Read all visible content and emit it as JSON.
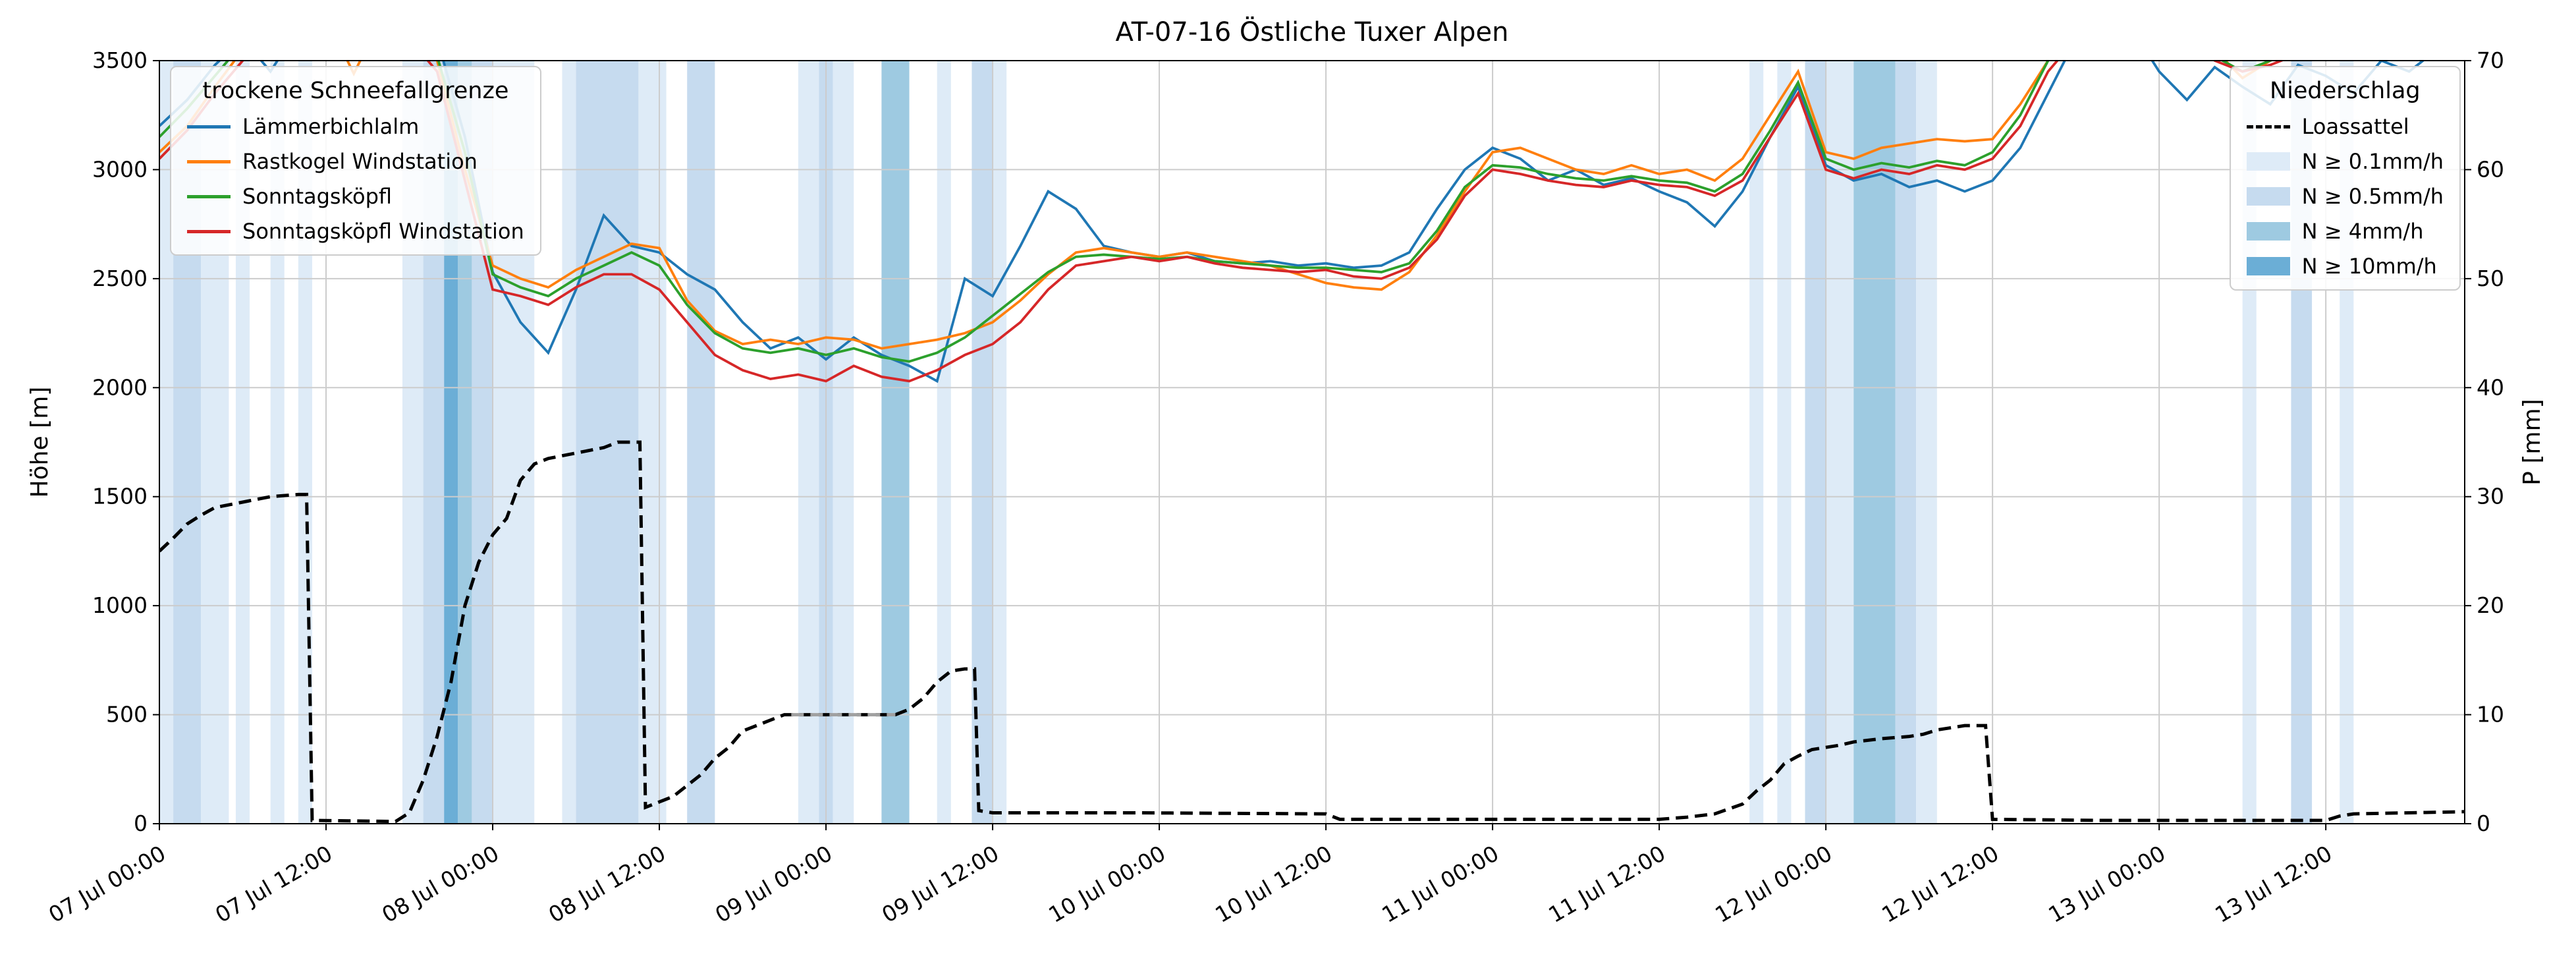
{
  "title": "AT-07-16 Östliche Tuxer Alpen",
  "legend_snowline": {
    "title": "trockene Schneefallgrenze"
  },
  "legend_precip": {
    "title": "Niederschlag"
  },
  "chart_data": {
    "type": "line",
    "title": "AT-07-16 Östliche Tuxer Alpen",
    "grid": true,
    "legend_positions": {
      "snowline": "upper left",
      "precip": "upper right"
    },
    "x_axis": {
      "unit": "hours since 07 Jul 00:00",
      "min_hours": 0,
      "max_hours": 166,
      "tick_hours": [
        0,
        12,
        24,
        36,
        48,
        60,
        72,
        84,
        96,
        108,
        120,
        132,
        144,
        156
      ],
      "tick_labels": [
        "07 Jul 00:00",
        "07 Jul 12:00",
        "08 Jul 00:00",
        "08 Jul 12:00",
        "09 Jul 00:00",
        "09 Jul 12:00",
        "10 Jul 00:00",
        "10 Jul 12:00",
        "11 Jul 00:00",
        "11 Jul 12:00",
        "12 Jul 00:00",
        "12 Jul 12:00",
        "13 Jul 00:00",
        "13 Jul 12:00"
      ]
    },
    "y_left": {
      "label": "Höhe [m]",
      "min": 0,
      "max": 3500,
      "ticks": [
        0,
        500,
        1000,
        1500,
        2000,
        2500,
        3000,
        3500
      ]
    },
    "y_right": {
      "label": "P [mm]",
      "min": 0,
      "max": 70,
      "ticks": [
        0,
        10,
        20,
        30,
        40,
        50,
        60,
        70
      ]
    },
    "t_step_hours": 2,
    "series": [
      {
        "name": "Lämmerbichlalm",
        "color": "#1f77b4",
        "values": [
          3200,
          3320,
          3480,
          3600,
          3450,
          3650,
          3700,
          3700,
          3700,
          3700,
          3600,
          3150,
          2530,
          2300,
          2160,
          2450,
          2790,
          2650,
          2620,
          2520,
          2450,
          2300,
          2180,
          2230,
          2130,
          2230,
          2150,
          2100,
          2030,
          2500,
          2420,
          2650,
          2900,
          2820,
          2650,
          2620,
          2600,
          2620,
          2580,
          2570,
          2580,
          2560,
          2570,
          2550,
          2560,
          2620,
          2820,
          3000,
          3100,
          3050,
          2950,
          3000,
          2930,
          2960,
          2900,
          2850,
          2740,
          2900,
          3150,
          3380,
          3020,
          2950,
          2980,
          2920,
          2950,
          2900,
          2950,
          3100,
          3350,
          3600,
          3700,
          3650,
          3450,
          3320,
          3470,
          3380,
          3300,
          3480,
          3430,
          3350,
          3500,
          3450,
          3550,
          3600
        ]
      },
      {
        "name": "Rastkogel Windstation",
        "color": "#ff7f0e",
        "values": [
          3080,
          3200,
          3380,
          3550,
          3650,
          3700,
          3700,
          3440,
          3700,
          3680,
          3500,
          3000,
          2560,
          2500,
          2460,
          2540,
          2600,
          2660,
          2640,
          2400,
          2260,
          2200,
          2220,
          2200,
          2230,
          2220,
          2180,
          2200,
          2220,
          2250,
          2300,
          2400,
          2520,
          2620,
          2640,
          2620,
          2600,
          2620,
          2600,
          2580,
          2560,
          2520,
          2480,
          2460,
          2450,
          2530,
          2700,
          2900,
          3080,
          3100,
          3050,
          3000,
          2980,
          3020,
          2980,
          3000,
          2950,
          3050,
          3250,
          3450,
          3080,
          3050,
          3100,
          3120,
          3140,
          3130,
          3140,
          3300,
          3500,
          3650,
          3700,
          3700,
          3700,
          3650,
          3550,
          3420,
          3500,
          3550,
          3600,
          3550,
          3600,
          3700,
          3700,
          3700
        ]
      },
      {
        "name": "Sonntagsköpfl",
        "color": "#2ca02c",
        "values": [
          3150,
          3280,
          3430,
          3580,
          3650,
          3700,
          3700,
          3700,
          3700,
          3650,
          3520,
          3080,
          2520,
          2460,
          2420,
          2500,
          2560,
          2620,
          2560,
          2380,
          2250,
          2180,
          2160,
          2180,
          2150,
          2180,
          2140,
          2120,
          2160,
          2230,
          2330,
          2430,
          2530,
          2600,
          2610,
          2600,
          2590,
          2600,
          2580,
          2570,
          2560,
          2550,
          2550,
          2540,
          2530,
          2570,
          2720,
          2920,
          3020,
          3010,
          2980,
          2960,
          2950,
          2970,
          2950,
          2940,
          2900,
          2980,
          3180,
          3400,
          3050,
          3000,
          3030,
          3010,
          3040,
          3020,
          3080,
          3250,
          3500,
          3650,
          3700,
          3700,
          3650,
          3580,
          3520,
          3450,
          3500,
          3550,
          3600,
          3520,
          3580,
          3650,
          3700,
          3700
        ]
      },
      {
        "name": "Sonntagsköpfl Windstation",
        "color": "#d62728",
        "values": [
          3050,
          3180,
          3350,
          3500,
          3600,
          3680,
          3700,
          3700,
          3700,
          3600,
          3450,
          2950,
          2450,
          2420,
          2380,
          2460,
          2520,
          2520,
          2450,
          2300,
          2150,
          2080,
          2040,
          2060,
          2030,
          2100,
          2050,
          2030,
          2080,
          2150,
          2200,
          2300,
          2450,
          2560,
          2580,
          2600,
          2580,
          2600,
          2570,
          2550,
          2540,
          2530,
          2540,
          2510,
          2500,
          2550,
          2680,
          2880,
          3000,
          2980,
          2950,
          2930,
          2920,
          2950,
          2930,
          2920,
          2880,
          2950,
          3150,
          3350,
          3000,
          2960,
          3000,
          2980,
          3020,
          3000,
          3050,
          3200,
          3450,
          3600,
          3700,
          3700,
          3680,
          3600,
          3500,
          3450,
          3480,
          3530,
          3580,
          3520,
          3580,
          3680,
          3700,
          3700
        ]
      }
    ],
    "precip_line": {
      "name": "Loassattel",
      "color": "#000000",
      "dash": true,
      "points": [
        [
          0,
          25
        ],
        [
          1,
          26.2
        ],
        [
          2,
          27.5
        ],
        [
          3,
          28.3
        ],
        [
          4,
          29
        ],
        [
          6,
          29.5
        ],
        [
          8,
          30
        ],
        [
          10,
          30.2
        ],
        [
          10.6,
          30.2
        ],
        [
          11,
          0.3
        ],
        [
          17,
          0.2
        ],
        [
          18,
          1
        ],
        [
          19,
          4
        ],
        [
          20,
          8
        ],
        [
          21,
          13
        ],
        [
          22,
          20
        ],
        [
          23,
          24
        ],
        [
          24,
          26.5
        ],
        [
          25,
          28
        ],
        [
          26,
          31.5
        ],
        [
          27,
          33
        ],
        [
          28,
          33.5
        ],
        [
          30,
          34
        ],
        [
          32,
          34.5
        ],
        [
          33,
          35
        ],
        [
          34.6,
          35
        ],
        [
          35,
          1.5
        ],
        [
          36,
          2
        ],
        [
          37,
          2.5
        ],
        [
          38,
          3.5
        ],
        [
          39,
          4.5
        ],
        [
          40,
          6
        ],
        [
          41,
          7
        ],
        [
          42,
          8.5
        ],
        [
          43,
          9
        ],
        [
          44,
          9.5
        ],
        [
          45,
          10
        ],
        [
          53,
          10
        ],
        [
          54,
          10.5
        ],
        [
          55,
          11.5
        ],
        [
          56,
          13
        ],
        [
          57,
          14
        ],
        [
          58,
          14.2
        ],
        [
          58.7,
          14.2
        ],
        [
          59,
          1.2
        ],
        [
          60,
          1
        ],
        [
          70,
          1
        ],
        [
          84,
          0.9
        ],
        [
          85,
          0.4
        ],
        [
          108,
          0.4
        ],
        [
          110,
          0.6
        ],
        [
          112,
          0.9
        ],
        [
          114,
          1.8
        ],
        [
          115,
          3
        ],
        [
          116,
          4
        ],
        [
          117,
          5.5
        ],
        [
          118,
          6.2
        ],
        [
          119,
          6.8
        ],
        [
          120,
          7
        ],
        [
          121,
          7.2
        ],
        [
          122,
          7.5
        ],
        [
          124,
          7.8
        ],
        [
          126,
          8
        ],
        [
          127,
          8.2
        ],
        [
          128,
          8.6
        ],
        [
          129,
          8.8
        ],
        [
          130,
          9
        ],
        [
          131.5,
          9
        ],
        [
          132,
          0.4
        ],
        [
          140,
          0.3
        ],
        [
          156,
          0.3
        ],
        [
          157,
          0.7
        ],
        [
          158,
          0.9
        ],
        [
          162,
          1
        ],
        [
          166,
          1.1
        ]
      ],
      "gray_segment": {
        "color": "#a0a0a0",
        "points": [
          [
            45.5,
            10
          ],
          [
            53,
            10
          ]
        ]
      }
    },
    "precip_bands": {
      "legend_labels": [
        "N ≥ 0.1mm/h",
        "N ≥ 0.5mm/h",
        "N ≥ 4mm/h",
        "N ≥ 10mm/h"
      ],
      "colors": [
        "#deebf7",
        "#c6dbef",
        "#9ecae1",
        "#6baed6"
      ],
      "intervals": [
        [
          0,
          1,
          1
        ],
        [
          1,
          3,
          2
        ],
        [
          3,
          5,
          1
        ],
        [
          5.5,
          6.5,
          1
        ],
        [
          8,
          9,
          1
        ],
        [
          10,
          11,
          1
        ],
        [
          17.5,
          19,
          1
        ],
        [
          19,
          20.5,
          2
        ],
        [
          20.5,
          21.5,
          4
        ],
        [
          21.5,
          22.5,
          3
        ],
        [
          22.5,
          24,
          2
        ],
        [
          24,
          27,
          1
        ],
        [
          29,
          30,
          1
        ],
        [
          30,
          34.5,
          2
        ],
        [
          34.5,
          36.5,
          1
        ],
        [
          38,
          40,
          2
        ],
        [
          46,
          47.5,
          1
        ],
        [
          47.5,
          48.5,
          2
        ],
        [
          48.5,
          50,
          1
        ],
        [
          52,
          54,
          3
        ],
        [
          56,
          57,
          1
        ],
        [
          58.5,
          60,
          2
        ],
        [
          60,
          61,
          1
        ],
        [
          114.5,
          115.5,
          1
        ],
        [
          116.5,
          117.5,
          1
        ],
        [
          118.5,
          120,
          2
        ],
        [
          120,
          122,
          1
        ],
        [
          122,
          125,
          3
        ],
        [
          125,
          126.5,
          2
        ],
        [
          126.5,
          128,
          1
        ],
        [
          150,
          151,
          1
        ],
        [
          153.5,
          155,
          2
        ],
        [
          157,
          158,
          1
        ]
      ]
    }
  }
}
